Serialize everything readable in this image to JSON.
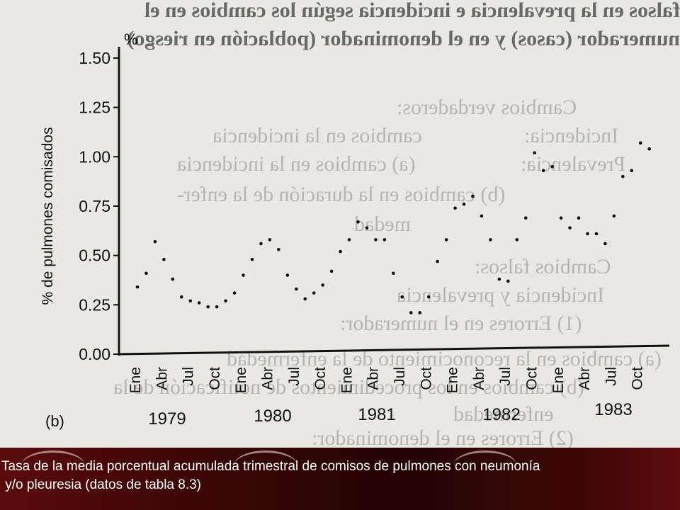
{
  "background_text": [
    "falsos en la prevalencia e incidencia según los cambios en el",
    "numerador (casos) y en el denominador (población en riesgo)",
    "Cambios verdaderos:",
    "Incidencia:",
    "cambios en la incidencia",
    "Prevalencia:",
    "(a) cambios en la incidencia",
    "(b) cambios en la duración de la enfer-",
    "medad",
    "Cambios falsos:",
    "Incidencia y prevalencia",
    "(1) Errores en el numerador:",
    "(a) cambios en la reconocimiento de la enfermedad",
    "(b) cambios en los procedimientos de notificación de la",
    "enfermedad",
    "(2) Errores en el denominador:"
  ],
  "caption": "Tasa de la media porcentual acumulada trimestral de comisos de pulmones con neumonía\n y/o pleuresia (datos de tabla 8.3)",
  "colors": {
    "ink": "#111111",
    "paper": "#e9e8e4",
    "caption_text": "#ffffff",
    "caption_bg": "#3a0606"
  },
  "chart_data": {
    "type": "scatter",
    "ylabel": "% de pulmones comisados",
    "yunit": "%",
    "panel_label": "(b)",
    "ylim": [
      0,
      1.5
    ],
    "yticks": [
      "0.00",
      "0.25",
      "0.50",
      "0.75",
      "1.00",
      "1.25",
      "1.50"
    ],
    "quarter_labels": [
      "Ene",
      "Abr",
      "Jul",
      "Oct"
    ],
    "years": [
      "1979",
      "1980",
      "1981",
      "1982",
      "1983"
    ],
    "grid": false,
    "series": [
      {
        "values": [
          [
            0.34,
            0.41,
            0.57,
            0.48,
            0.38,
            0.29,
            0.27,
            0.26,
            0.24,
            0.24,
            0.27,
            0.31,
            0.4,
            0.48,
            0.56,
            0.58,
            0.53,
            0.4,
            0.33,
            0.28,
            0.31,
            0.35,
            0.42,
            0.52,
            0.58,
            0.67,
            0.64,
            0.58
          ],
          [
            0.58,
            0.41,
            0.29,
            0.21,
            0.21,
            0.29,
            0.47,
            0.58,
            0.74,
            0.76,
            0.8,
            0.7,
            0.58,
            0.38,
            0.37,
            0.58,
            0.69,
            1.02,
            0.93,
            0.95,
            0.69,
            0.64,
            0.69,
            0.61,
            0.61,
            0.56,
            0.7,
            0.9,
            0.93,
            1.07,
            1.04
          ]
        ]
      }
    ]
  }
}
